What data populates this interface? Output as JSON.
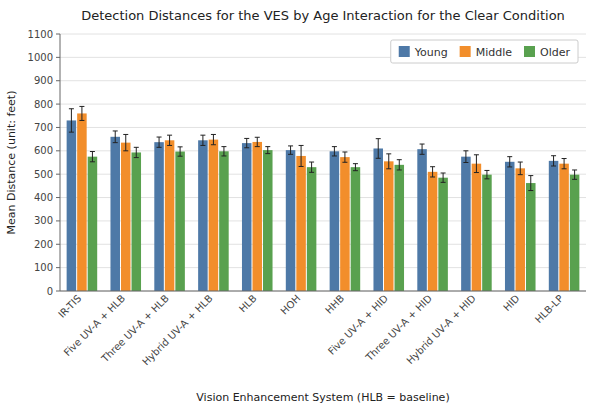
{
  "chart_data": {
    "type": "bar",
    "title": "Detection Distances for the VES by Age Interaction for the Clear Condition",
    "x_label": "Vision Enhancement System (HLB = baseline)",
    "y_label": "Mean Distance (unit: feet)",
    "categories": [
      "IR-TIS",
      "Five UV-A + HLB",
      "Three UV-A + HLB",
      "Hybrid UV-A + HLB",
      "HLB",
      "HOH",
      "HHB",
      "Five UV-A + HID",
      "Three UV-A + HID",
      "Hybrid UV-A + HID",
      "HID",
      "HLB-LP"
    ],
    "series": [
      {
        "name": "Young",
        "color": "#4e79a7",
        "values": [
          730,
          660,
          637,
          645,
          633,
          603,
          598,
          610,
          607,
          575,
          553,
          557
        ],
        "errors": [
          50,
          25,
          22,
          22,
          20,
          18,
          20,
          42,
          22,
          25,
          22,
          22
        ]
      },
      {
        "name": "Middle",
        "color": "#f28e2b",
        "values": [
          760,
          635,
          645,
          648,
          638,
          578,
          573,
          555,
          510,
          545,
          525,
          545
        ],
        "errors": [
          30,
          35,
          22,
          22,
          20,
          45,
          22,
          32,
          22,
          38,
          27,
          22
        ]
      },
      {
        "name": "Older",
        "color": "#59a14f",
        "values": [
          575,
          593,
          597,
          598,
          603,
          530,
          530,
          540,
          485,
          498,
          462,
          498
        ],
        "errors": [
          22,
          22,
          20,
          20,
          15,
          22,
          15,
          22,
          20,
          18,
          32,
          20
        ]
      }
    ],
    "ylim": [
      0,
      1100
    ],
    "yticks": [
      0,
      100,
      200,
      300,
      400,
      500,
      600,
      700,
      800,
      900,
      1000,
      1100
    ],
    "grid": true,
    "legend": "upper right"
  }
}
